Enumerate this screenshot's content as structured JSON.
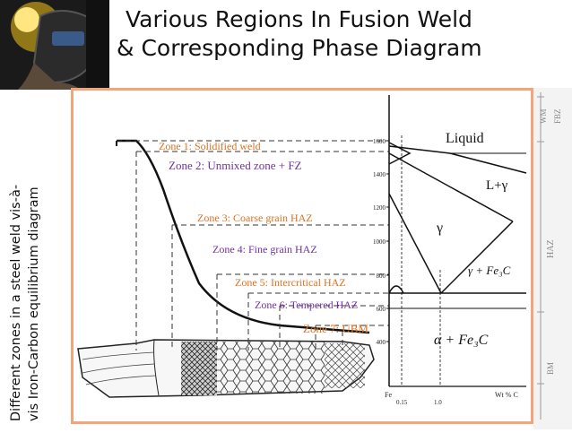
{
  "title": {
    "line1": "Various Regions In Fusion Weld",
    "line2": "& Corresponding Phase Diagram"
  },
  "side_caption": {
    "line1": "Different zones in a steel weld vis-à-",
    "line2": "vis Iron-Carbon equilibrium diagram"
  },
  "zones": [
    {
      "label": "Zone 1: Solidified weld",
      "color": "#e07020"
    },
    {
      "label": "Zone 2: Unmixed zone + FZ",
      "color": "#7030a0"
    },
    {
      "label": "Zone 3: Coarse grain  HAZ",
      "color": "#e07020"
    },
    {
      "label": "Zone 4: Fine grain HAZ",
      "color": "#7030a0"
    },
    {
      "label": "Zone 5: Intercritical HAZ",
      "color": "#e07020"
    },
    {
      "label": "Zone 6: Tempered HAZ",
      "color": "#7030a0"
    },
    {
      "label": "Zone 7: UBM",
      "color": "#e07020"
    }
  ],
  "phases": {
    "liquid": "Liquid",
    "l_gamma": "L+γ",
    "gamma": "γ",
    "gamma_fe3c": "γ + Fe₃C",
    "alpha_fe3c": "α + Fe₃C"
  },
  "temp_axis": {
    "ticks": [
      "1600",
      "1400",
      "1200",
      "1000",
      "800",
      "600",
      "400"
    ]
  },
  "comp_axis": {
    "element": "Fe",
    "ticks": [
      "0.15",
      "1.0"
    ],
    "unit": "Wt % C"
  },
  "scale_labels": {
    "wm": "WM",
    "fbz": "FBZ",
    "haz": "HAZ",
    "bm": "BM"
  }
}
